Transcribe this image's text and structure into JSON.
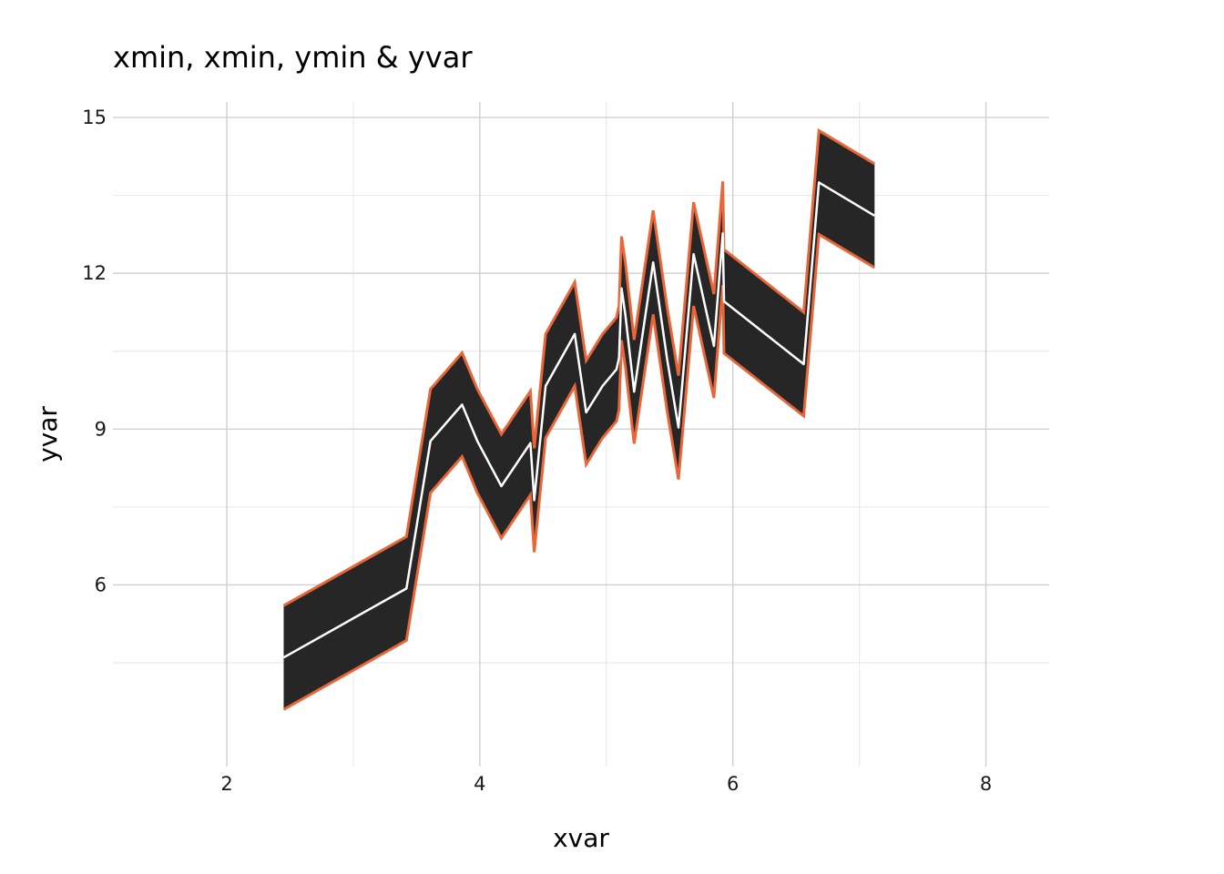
{
  "chart_data": {
    "type": "area",
    "title": "xmin, xmin, ymin & yvar",
    "xlabel": "xvar",
    "ylabel": "yvar",
    "xlim": [
      1.1,
      8.5
    ],
    "ylim": [
      2.5,
      15.3
    ],
    "x_ticks": [
      2,
      4,
      6,
      8
    ],
    "y_ticks": [
      6,
      9,
      12,
      15
    ],
    "x_tick_labels": [
      "2",
      "4",
      "6",
      "8"
    ],
    "y_tick_labels": [
      "6",
      "9",
      "12",
      "15"
    ],
    "grid": true,
    "legend": "none",
    "colors": {
      "ribbon_fill": "#262626",
      "ribbon_edge": "#e8663a",
      "line": "#ffffff",
      "grid_major": "#d0d0d0",
      "grid_minor": "#e6e6e6"
    },
    "x": [
      2.45,
      3.42,
      3.61,
      3.86,
      3.98,
      4.17,
      4.4,
      4.43,
      4.52,
      4.75,
      4.84,
      4.97,
      5.08,
      5.1,
      5.12,
      5.15,
      5.22,
      5.37,
      5.48,
      5.57,
      5.69,
      5.85,
      5.92,
      5.93,
      6.56,
      6.68,
      7.12
    ],
    "y": [
      4.6,
      5.93,
      8.77,
      9.47,
      8.77,
      7.9,
      8.73,
      7.63,
      9.83,
      10.83,
      9.32,
      9.83,
      10.15,
      10.37,
      11.71,
      11.21,
      9.72,
      12.21,
      10.35,
      9.03,
      12.37,
      10.6,
      12.77,
      11.46,
      10.25,
      13.75,
      13.11
    ],
    "ymin": [
      3.6,
      4.93,
      7.77,
      8.47,
      7.77,
      6.9,
      7.73,
      6.63,
      8.83,
      9.83,
      8.32,
      8.83,
      9.15,
      9.37,
      10.71,
      10.21,
      8.72,
      11.21,
      9.35,
      8.03,
      11.37,
      9.6,
      11.77,
      10.46,
      9.25,
      12.75,
      12.11
    ],
    "ymax": [
      5.6,
      6.93,
      9.77,
      10.47,
      9.77,
      8.9,
      9.73,
      8.63,
      10.83,
      11.83,
      10.32,
      10.83,
      11.15,
      11.37,
      12.71,
      12.21,
      10.72,
      13.21,
      11.35,
      10.03,
      13.37,
      11.6,
      13.77,
      12.46,
      11.25,
      14.75,
      14.11
    ]
  }
}
